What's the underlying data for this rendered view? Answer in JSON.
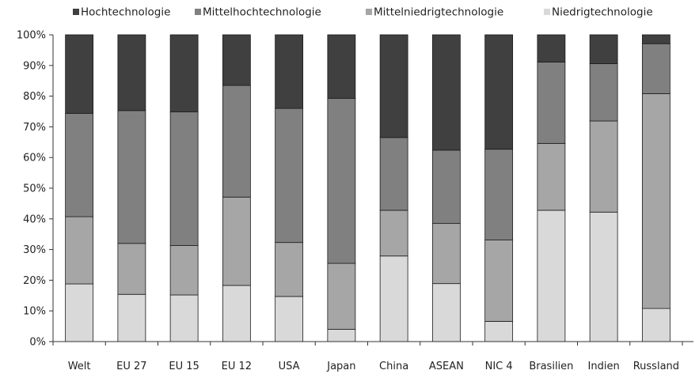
{
  "chart_data": {
    "type": "bar",
    "stacked": true,
    "normalized": true,
    "categories": [
      "Welt",
      "EU 27",
      "EU 15",
      "EU 12",
      "USA",
      "Japan",
      "China",
      "ASEAN",
      "NIC 4",
      "Brasilien",
      "Indien",
      "Russland"
    ],
    "series": [
      {
        "name": "Niedrigtechnologie",
        "color": "#d9d9d9",
        "values": [
          18.8,
          15.4,
          15.2,
          18.3,
          14.7,
          4.0,
          27.9,
          18.9,
          6.6,
          42.8,
          42.2,
          10.8
        ]
      },
      {
        "name": "Mittelniedrigtechnologie",
        "color": "#a6a6a6",
        "values": [
          21.9,
          16.6,
          16.1,
          28.8,
          17.6,
          21.5,
          14.9,
          19.6,
          26.5,
          21.8,
          29.7,
          70.0
        ]
      },
      {
        "name": "Mittelhochtechnologie",
        "color": "#808080",
        "values": [
          33.7,
          43.3,
          43.6,
          36.4,
          43.7,
          53.8,
          23.7,
          23.9,
          29.6,
          26.5,
          18.7,
          16.3
        ]
      },
      {
        "name": "Hochtechnologie",
        "color": "#404040",
        "values": [
          25.6,
          24.7,
          25.1,
          16.5,
          24.0,
          20.7,
          33.5,
          37.6,
          37.3,
          8.9,
          9.4,
          2.9
        ]
      }
    ],
    "legend_order": [
      "Hochtechnologie",
      "Mittelhochtechnologie",
      "Mittelniedrigtechnologie",
      "Niedrigtechnologie"
    ],
    "y_ticks": [
      "0%",
      "10%",
      "20%",
      "30%",
      "40%",
      "50%",
      "60%",
      "70%",
      "80%",
      "90%",
      "100%"
    ],
    "ylim": [
      0,
      100
    ],
    "grid": false,
    "legend_position": "top"
  }
}
